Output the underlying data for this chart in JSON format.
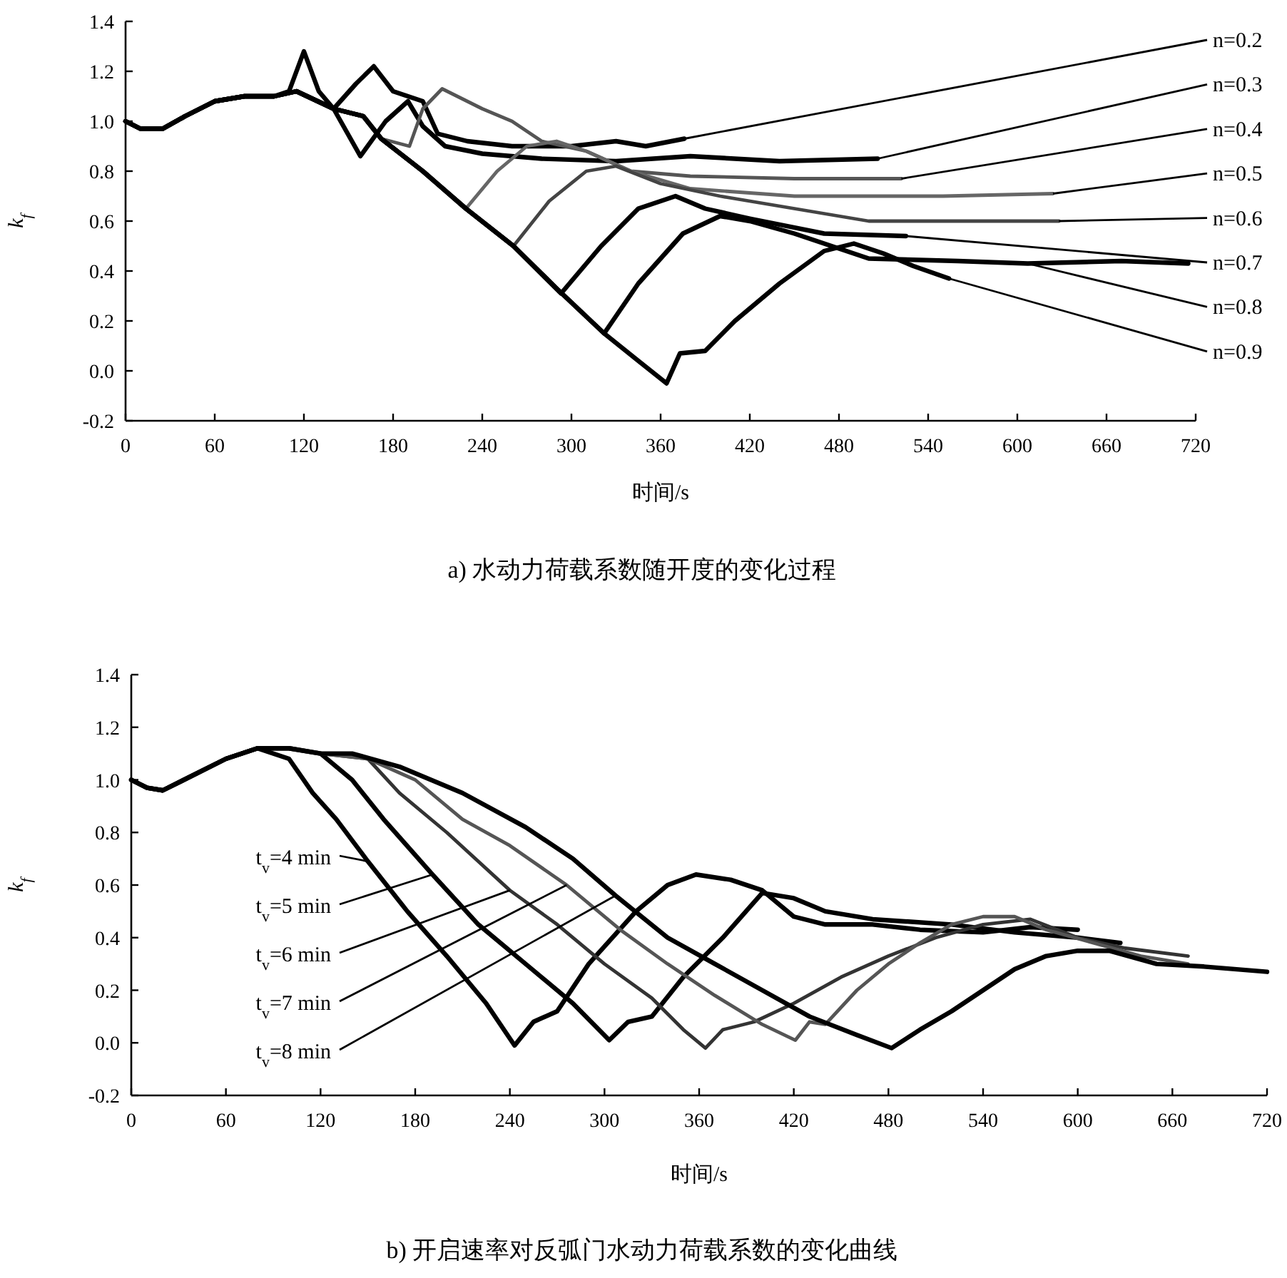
{
  "chart_data": [
    {
      "type": "line",
      "title": "a) 水动力荷载系数随开度的变化过程",
      "xlabel": "时间/s",
      "ylabel": "k$_{f}$",
      "xlim": [
        0,
        720
      ],
      "xticks": [
        0,
        60,
        120,
        180,
        240,
        300,
        360,
        420,
        480,
        540,
        600,
        660,
        720
      ],
      "ylim": [
        -0.2,
        1.4
      ],
      "yticks": [
        {
          "value": -0.2,
          "label": "-0.2"
        },
        {
          "value": 0,
          "label": "0.0"
        },
        {
          "value": 0.2,
          "label": "0.2"
        },
        {
          "value": 0.4,
          "label": "0.4"
        },
        {
          "value": 0.6,
          "label": "0.6"
        },
        {
          "value": 0.8,
          "label": "0.8"
        },
        {
          "value": 1.0,
          "label": "1.0"
        },
        {
          "value": 1.2,
          "label": "1.2"
        },
        {
          "value": 1.4,
          "label": "1.4"
        }
      ],
      "series": [
        {
          "color": "#000000",
          "x": [
            0,
            10,
            25,
            40,
            60,
            80,
            100,
            110,
            120,
            130,
            140,
            155,
            167,
            180,
            200,
            210,
            230,
            260,
            300,
            330,
            350,
            376
          ],
          "values": [
            1.0,
            0.97,
            0.97,
            1.02,
            1.08,
            1.1,
            1.1,
            1.12,
            1.28,
            1.12,
            1.05,
            1.15,
            1.22,
            1.12,
            1.08,
            0.95,
            0.92,
            0.9,
            0.9,
            0.92,
            0.9,
            0.93
          ]
        },
        {
          "color": "#000000",
          "x": [
            0,
            10,
            25,
            40,
            60,
            80,
            100,
            115,
            140,
            158,
            175,
            190,
            200,
            215,
            240,
            280,
            330,
            380,
            440,
            506
          ],
          "values": [
            1.0,
            0.97,
            0.97,
            1.02,
            1.08,
            1.1,
            1.1,
            1.12,
            1.05,
            0.86,
            1.0,
            1.08,
            0.98,
            0.9,
            0.87,
            0.85,
            0.84,
            0.86,
            0.84,
            0.85
          ]
        },
        {
          "color": "#555555",
          "x": [
            0,
            10,
            25,
            40,
            60,
            80,
            100,
            115,
            140,
            160,
            172,
            191,
            200,
            213,
            240,
            260,
            280,
            310,
            340,
            380,
            450,
            522
          ],
          "values": [
            1.0,
            0.97,
            0.97,
            1.02,
            1.08,
            1.1,
            1.1,
            1.12,
            1.05,
            1.02,
            0.93,
            0.9,
            1.05,
            1.13,
            1.05,
            1.0,
            0.92,
            0.88,
            0.8,
            0.78,
            0.77,
            0.77
          ]
        },
        {
          "color": "#666666",
          "x": [
            0,
            10,
            25,
            40,
            60,
            80,
            100,
            115,
            140,
            160,
            172,
            200,
            229,
            250,
            270,
            290,
            310,
            340,
            380,
            450,
            550,
            624
          ],
          "values": [
            1.0,
            0.97,
            0.97,
            1.02,
            1.08,
            1.1,
            1.1,
            1.12,
            1.05,
            1.02,
            0.93,
            0.8,
            0.65,
            0.8,
            0.9,
            0.92,
            0.88,
            0.8,
            0.73,
            0.7,
            0.7,
            0.71
          ]
        },
        {
          "color": "#444444",
          "x": [
            0,
            10,
            25,
            40,
            60,
            80,
            100,
            115,
            140,
            160,
            172,
            200,
            229,
            261,
            285,
            310,
            330,
            360,
            400,
            500,
            628
          ],
          "values": [
            1.0,
            0.97,
            0.97,
            1.02,
            1.08,
            1.1,
            1.1,
            1.12,
            1.05,
            1.02,
            0.93,
            0.8,
            0.65,
            0.5,
            0.68,
            0.8,
            0.82,
            0.75,
            0.7,
            0.6,
            0.6
          ]
        },
        {
          "color": "#000000",
          "x": [
            0,
            10,
            25,
            40,
            60,
            80,
            100,
            115,
            140,
            160,
            172,
            200,
            229,
            261,
            293,
            320,
            345,
            370,
            390,
            420,
            470,
            525
          ],
          "values": [
            1.0,
            0.97,
            0.97,
            1.02,
            1.08,
            1.1,
            1.1,
            1.12,
            1.05,
            1.02,
            0.93,
            0.8,
            0.65,
            0.5,
            0.31,
            0.5,
            0.65,
            0.7,
            0.65,
            0.61,
            0.55,
            0.54
          ]
        },
        {
          "color": "#000000",
          "x": [
            0,
            10,
            25,
            40,
            60,
            80,
            100,
            115,
            140,
            160,
            172,
            200,
            229,
            261,
            290,
            322,
            345,
            375,
            400,
            420,
            450,
            500,
            560,
            607,
            670,
            715
          ],
          "values": [
            1.0,
            0.97,
            0.97,
            1.02,
            1.08,
            1.1,
            1.1,
            1.12,
            1.05,
            1.02,
            0.93,
            0.8,
            0.65,
            0.5,
            0.33,
            0.15,
            0.35,
            0.55,
            0.62,
            0.6,
            0.55,
            0.45,
            0.44,
            0.43,
            0.44,
            0.43
          ]
        },
        {
          "color": "#000000",
          "x": [
            0,
            10,
            25,
            40,
            60,
            80,
            100,
            115,
            140,
            160,
            172,
            200,
            229,
            261,
            290,
            322,
            345,
            364,
            373,
            390,
            410,
            440,
            470,
            490,
            510,
            530,
            554
          ],
          "values": [
            1.0,
            0.97,
            0.97,
            1.02,
            1.08,
            1.1,
            1.1,
            1.12,
            1.05,
            1.02,
            0.93,
            0.8,
            0.65,
            0.5,
            0.33,
            0.15,
            0.04,
            -0.05,
            0.07,
            0.08,
            0.2,
            0.35,
            0.48,
            0.51,
            0.47,
            0.42,
            0.37
          ]
        }
      ],
      "annotations": [
        {
          "text": "n=0.2",
          "x": 376,
          "y": 0.93
        },
        {
          "text": "n=0.3",
          "x": 506,
          "y": 0.85
        },
        {
          "text": "n=0.4",
          "x": 522,
          "y": 0.77
        },
        {
          "text": "n=0.5",
          "x": 624,
          "y": 0.71
        },
        {
          "text": "n=0.6",
          "x": 628,
          "y": 0.6
        },
        {
          "text": "n=0.7",
          "x": 525,
          "y": 0.54
        },
        {
          "text": "n=0.8",
          "x": 607,
          "y": 0.43
        },
        {
          "text": "n=0.9",
          "x": 554,
          "y": 0.37
        }
      ]
    },
    {
      "type": "line",
      "title": "b) 开启速率对反弧门水动力荷载系数的变化曲线",
      "xlabel": "时间/s",
      "ylabel": "k$_{f}$",
      "xlim": [
        0,
        720
      ],
      "xticks": [
        0,
        60,
        120,
        180,
        240,
        300,
        360,
        420,
        480,
        540,
        600,
        660,
        720
      ],
      "ylim": [
        -0.2,
        1.4
      ],
      "yticks": [
        {
          "value": -0.2,
          "label": "-0.2"
        },
        {
          "value": 0,
          "label": "0.0"
        },
        {
          "value": 0.2,
          "label": "0.2"
        },
        {
          "value": 0.4,
          "label": "0.4"
        },
        {
          "value": 0.6,
          "label": "0.6"
        },
        {
          "value": 0.8,
          "label": "0.8"
        },
        {
          "value": 1.0,
          "label": "1.0"
        },
        {
          "value": 1.2,
          "label": "1.2"
        },
        {
          "value": 1.4,
          "label": "1.4"
        }
      ],
      "series": [
        {
          "color": "#000000",
          "x": [
            0,
            10,
            20,
            40,
            60,
            80,
            100,
            115,
            130,
            150,
            175,
            200,
            225,
            243,
            255,
            270,
            290,
            320,
            340,
            358,
            380,
            400,
            420,
            440,
            470,
            500,
            540,
            570,
            600
          ],
          "values": [
            1.0,
            0.97,
            0.96,
            1.02,
            1.08,
            1.12,
            1.08,
            0.95,
            0.85,
            0.69,
            0.5,
            0.33,
            0.15,
            -0.01,
            0.08,
            0.12,
            0.3,
            0.5,
            0.6,
            0.64,
            0.62,
            0.58,
            0.48,
            0.45,
            0.45,
            0.43,
            0.42,
            0.44,
            0.43
          ]
        },
        {
          "color": "#000000",
          "x": [
            0,
            10,
            20,
            40,
            60,
            80,
            100,
            120,
            140,
            160,
            191,
            220,
            250,
            280,
            303,
            315,
            330,
            350,
            375,
            400,
            420,
            440,
            470,
            520,
            560,
            600,
            627
          ],
          "values": [
            1.0,
            0.97,
            0.96,
            1.02,
            1.08,
            1.12,
            1.12,
            1.1,
            1.0,
            0.85,
            0.64,
            0.45,
            0.3,
            0.15,
            0.01,
            0.08,
            0.1,
            0.25,
            0.4,
            0.57,
            0.55,
            0.5,
            0.47,
            0.45,
            0.42,
            0.4,
            0.38
          ]
        },
        {
          "color": "#333333",
          "x": [
            0,
            10,
            20,
            40,
            60,
            80,
            100,
            120,
            150,
            170,
            200,
            240,
            270,
            300,
            330,
            350,
            364,
            375,
            395,
            420,
            450,
            480,
            510,
            540,
            570,
            600,
            630,
            670
          ],
          "values": [
            1.0,
            0.97,
            0.96,
            1.02,
            1.08,
            1.12,
            1.12,
            1.1,
            1.08,
            0.95,
            0.8,
            0.58,
            0.45,
            0.3,
            0.17,
            0.05,
            -0.02,
            0.05,
            0.08,
            0.15,
            0.25,
            0.33,
            0.4,
            0.45,
            0.47,
            0.4,
            0.36,
            0.33
          ]
        },
        {
          "color": "#555555",
          "x": [
            0,
            10,
            20,
            40,
            60,
            80,
            100,
            120,
            150,
            180,
            210,
            240,
            276,
            310,
            340,
            370,
            400,
            421,
            430,
            440,
            460,
            480,
            500,
            520,
            540,
            560,
            580,
            610,
            640,
            670
          ],
          "values": [
            1.0,
            0.97,
            0.96,
            1.02,
            1.08,
            1.12,
            1.12,
            1.1,
            1.08,
            1.0,
            0.85,
            0.75,
            0.6,
            0.43,
            0.3,
            0.18,
            0.07,
            0.01,
            0.08,
            0.07,
            0.2,
            0.3,
            0.38,
            0.45,
            0.48,
            0.48,
            0.43,
            0.38,
            0.33,
            0.3
          ]
        },
        {
          "color": "#000000",
          "x": [
            0,
            10,
            20,
            40,
            60,
            80,
            100,
            120,
            140,
            170,
            210,
            250,
            280,
            307,
            340,
            370,
            400,
            430,
            460,
            482,
            500,
            520,
            540,
            560,
            580,
            600,
            620,
            650,
            680,
            720
          ],
          "values": [
            1.0,
            0.97,
            0.96,
            1.02,
            1.08,
            1.12,
            1.12,
            1.1,
            1.1,
            1.05,
            0.95,
            0.82,
            0.7,
            0.56,
            0.4,
            0.3,
            0.2,
            0.1,
            0.03,
            -0.02,
            0.05,
            0.12,
            0.2,
            0.28,
            0.33,
            0.35,
            0.35,
            0.3,
            0.29,
            0.27
          ]
        }
      ],
      "annotations": [
        {
          "text": "t$_{v}$=4 min",
          "x": 150,
          "y": 0.69
        },
        {
          "text": "t$_{v}$=5 min",
          "x": 191,
          "y": 0.64
        },
        {
          "text": "t$_{v}$=6 min",
          "x": 240,
          "y": 0.58
        },
        {
          "text": "t$_{v}$=7 min",
          "x": 276,
          "y": 0.6
        },
        {
          "text": "t$_{v}$=8 min",
          "x": 307,
          "y": 0.56
        }
      ]
    }
  ]
}
